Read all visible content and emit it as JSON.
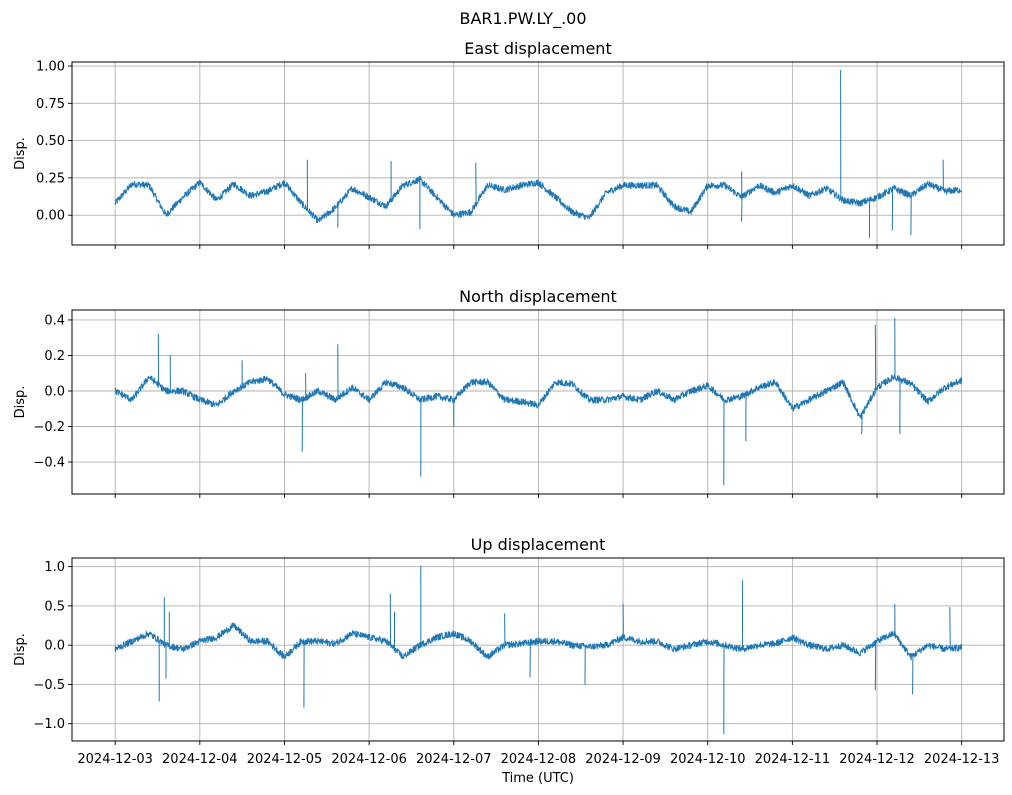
{
  "suptitle": "BAR1.PW.LY_.00",
  "chart_data": [
    {
      "type": "line",
      "title": "East displacement",
      "ylabel": "Disp.",
      "xlabel": "",
      "x_unit": "days since 2024-12-03",
      "xlim": [
        -0.51,
        10.5
      ],
      "ylim": [
        -0.2,
        1.027
      ],
      "yticks": [
        0.0,
        0.25,
        0.5,
        0.75,
        1.0
      ],
      "ytick_labels": [
        "0.00",
        "0.25",
        "0.50",
        "0.75",
        "1.00"
      ],
      "grid": true,
      "color": "#1f77b4",
      "baseline_step_days": 0.2,
      "baseline": [
        0.08,
        0.21,
        0.2,
        0.0,
        0.12,
        0.22,
        0.1,
        0.21,
        0.13,
        0.16,
        0.22,
        0.08,
        -0.04,
        0.05,
        0.18,
        0.12,
        0.06,
        0.2,
        0.24,
        0.12,
        0.0,
        0.02,
        0.2,
        0.17,
        0.2,
        0.22,
        0.12,
        0.02,
        -0.02,
        0.15,
        0.2,
        0.2,
        0.2,
        0.06,
        0.02,
        0.2,
        0.2,
        0.12,
        0.2,
        0.15,
        0.2,
        0.13,
        0.18,
        0.1,
        0.08,
        0.12,
        0.18,
        0.13,
        0.21,
        0.16,
        0.17
      ],
      "spikes": [
        [
          2.27,
          0.37
        ],
        [
          2.63,
          -0.08
        ],
        [
          3.26,
          0.36
        ],
        [
          3.6,
          -0.09
        ],
        [
          4.26,
          0.35
        ],
        [
          7.4,
          -0.04
        ],
        [
          7.4,
          0.29
        ],
        [
          8.57,
          0.97
        ],
        [
          8.91,
          -0.15
        ],
        [
          9.18,
          -0.1
        ],
        [
          9.4,
          -0.13
        ],
        [
          9.78,
          0.37
        ]
      ]
    },
    {
      "type": "line",
      "title": "North displacement",
      "ylabel": "Disp.",
      "xlabel": "",
      "x_unit": "days since 2024-12-03",
      "xlim": [
        -0.51,
        10.5
      ],
      "ylim": [
        -0.58,
        0.456
      ],
      "yticks": [
        -0.4,
        -0.2,
        0.0,
        0.2,
        0.4
      ],
      "ytick_labels": [
        "−0.4",
        "−0.2",
        "0.0",
        "0.2",
        "0.4"
      ],
      "grid": true,
      "color": "#1f77b4",
      "baseline_step_days": 0.2,
      "baseline": [
        0.0,
        -0.05,
        0.08,
        0.0,
        0.0,
        -0.05,
        -0.08,
        0.0,
        0.05,
        0.07,
        -0.02,
        -0.05,
        0.0,
        -0.05,
        0.02,
        -0.05,
        0.05,
        0.02,
        -0.05,
        -0.03,
        -0.05,
        0.05,
        0.05,
        -0.05,
        -0.06,
        -0.08,
        0.05,
        0.04,
        -0.05,
        -0.05,
        -0.03,
        -0.05,
        0.0,
        -0.05,
        0.0,
        0.03,
        -0.05,
        -0.03,
        0.02,
        0.05,
        -0.1,
        -0.05,
        0.0,
        0.05,
        -0.15,
        0.02,
        0.08,
        0.04,
        -0.06,
        0.02,
        0.06
      ],
      "spikes": [
        [
          0.51,
          0.32
        ],
        [
          0.65,
          0.2
        ],
        [
          1.5,
          0.17
        ],
        [
          2.21,
          -0.34
        ],
        [
          2.25,
          0.1
        ],
        [
          2.63,
          0.26
        ],
        [
          3.61,
          -0.48
        ],
        [
          4.0,
          -0.2
        ],
        [
          7.19,
          -0.53
        ],
        [
          7.45,
          -0.28
        ],
        [
          8.82,
          -0.24
        ],
        [
          8.98,
          0.37
        ],
        [
          9.21,
          0.41
        ],
        [
          9.27,
          -0.24
        ]
      ]
    },
    {
      "type": "line",
      "title": "Up displacement",
      "ylabel": "Disp.",
      "xlabel": "Time (UTC)",
      "x_unit": "days since 2024-12-03",
      "xlim": [
        -0.51,
        10.5
      ],
      "ylim": [
        -1.22,
        1.11
      ],
      "yticks": [
        -1.0,
        -0.5,
        0.0,
        0.5,
        1.0
      ],
      "ytick_labels": [
        "−1.0",
        "−0.5",
        "0.0",
        "0.5",
        "1.0"
      ],
      "grid": true,
      "color": "#1f77b4",
      "baseline_step_days": 0.2,
      "baseline": [
        -0.05,
        0.05,
        0.15,
        0.0,
        -0.05,
        0.05,
        0.1,
        0.25,
        0.05,
        0.05,
        -0.15,
        0.05,
        0.05,
        0.02,
        0.15,
        0.1,
        0.05,
        -0.15,
        0.0,
        0.1,
        0.15,
        0.05,
        -0.15,
        0.0,
        0.02,
        0.05,
        0.05,
        0.0,
        -0.02,
        0.0,
        0.1,
        0.05,
        0.05,
        -0.05,
        0.0,
        0.05,
        0.0,
        -0.05,
        0.0,
        0.02,
        0.1,
        0.0,
        -0.05,
        0.0,
        -0.1,
        0.05,
        0.15,
        -0.15,
        0.0,
        -0.05,
        -0.03
      ],
      "spikes": [
        [
          0.52,
          -0.71
        ],
        [
          0.58,
          0.61
        ],
        [
          0.6,
          -0.42
        ],
        [
          0.64,
          0.42
        ],
        [
          2.23,
          -0.79
        ],
        [
          3.25,
          0.65
        ],
        [
          3.61,
          1.01
        ],
        [
          3.3,
          0.42
        ],
        [
          5.55,
          -0.5
        ],
        [
          6.0,
          0.52
        ],
        [
          7.19,
          -1.13
        ],
        [
          7.41,
          0.82
        ],
        [
          8.98,
          -0.57
        ],
        [
          9.21,
          0.52
        ],
        [
          9.42,
          -0.62
        ],
        [
          9.86,
          0.48
        ],
        [
          4.6,
          0.4
        ],
        [
          4.9,
          -0.4
        ]
      ]
    }
  ],
  "xtick_labels": [
    "2024-12-03",
    "2024-12-04",
    "2024-12-05",
    "2024-12-06",
    "2024-12-07",
    "2024-12-08",
    "2024-12-09",
    "2024-12-10",
    "2024-12-11",
    "2024-12-12",
    "2024-12-13"
  ],
  "xticks": [
    0,
    1,
    2,
    3,
    4,
    5,
    6,
    7,
    8,
    9,
    10
  ]
}
